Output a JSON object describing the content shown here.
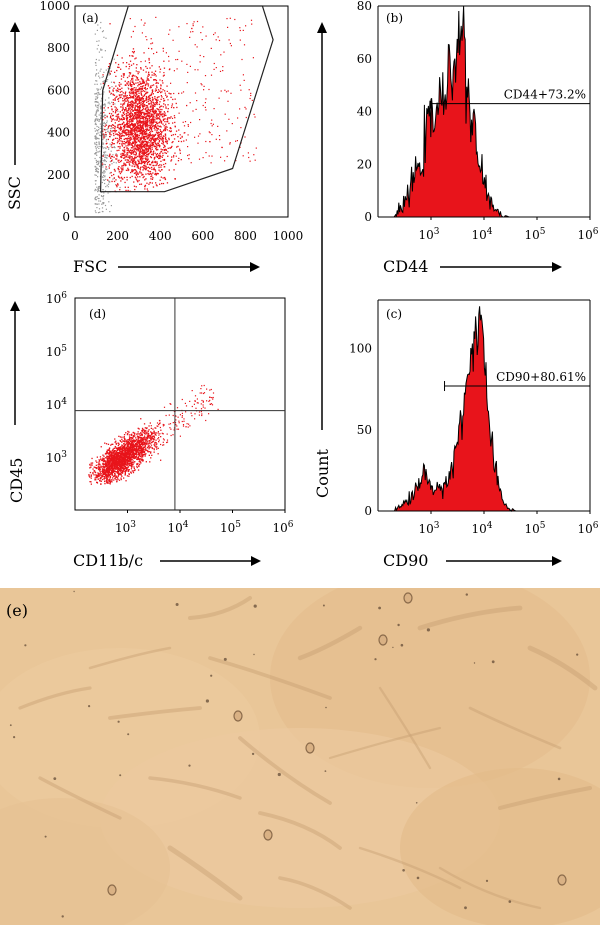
{
  "chart_data": [
    {
      "panel": "(a)",
      "type": "scatter",
      "xlabel": "FSC",
      "ylabel": "SSC",
      "xlim": [
        0,
        1000
      ],
      "ylim": [
        0,
        1000
      ],
      "xticks": [
        "0",
        "200",
        "400",
        "600",
        "800",
        "1000"
      ],
      "yticks": [
        "0",
        "200",
        "400",
        "600",
        "800",
        "1000"
      ],
      "gate_polygon": [
        [
          140,
          120
        ],
        [
          360,
          120
        ],
        [
          420,
          120
        ],
        [
          740,
          230
        ],
        [
          930,
          840
        ],
        [
          880,
          1020
        ],
        [
          250,
          1020
        ],
        [
          130,
          600
        ],
        [
          120,
          120
        ]
      ],
      "series": [
        {
          "color": "#e8141b",
          "cluster_center": [
            300,
            420
          ],
          "approx_points": 6000
        },
        {
          "color": "#999999",
          "cluster_center": [
            90,
            350
          ],
          "approx_points": 1500
        }
      ]
    },
    {
      "panel": "(b)",
      "type": "area",
      "xlabel": "CD44",
      "ylabel": "Count",
      "xscale": "log",
      "xlim": [
        100,
        1000000
      ],
      "ylim": [
        0,
        80
      ],
      "xticks": [
        "10^3",
        "10^4",
        "10^5",
        "10^6"
      ],
      "yticks": [
        "0",
        "20",
        "40",
        "60",
        "80"
      ],
      "x": [
        200,
        300,
        450,
        650,
        800,
        1000,
        1300,
        1600,
        2000,
        2400,
        2800,
        3200,
        3600,
        4200,
        5000,
        6000,
        7000,
        8500,
        10000,
        13000,
        17000,
        22000,
        30000
      ],
      "values": [
        0,
        4,
        13,
        22,
        30,
        37,
        41,
        43,
        48,
        55,
        62,
        68,
        76,
        62,
        45,
        35,
        27,
        20,
        12,
        6,
        3,
        1,
        0
      ],
      "gate": {
        "label": "CD44+73.2%",
        "x_start": 1000,
        "x_end": 1000000,
        "y": 43
      }
    },
    {
      "panel": "(d)",
      "type": "scatter",
      "xlabel": "CD11b/c",
      "ylabel": "CD45",
      "xscale": "log",
      "yscale": "log",
      "xlim": [
        100,
        1000000
      ],
      "ylim": [
        100,
        1000000
      ],
      "xticks": [
        "10^3",
        "10^4",
        "10^5",
        "10^6"
      ],
      "yticks": [
        "10^3",
        "10^4",
        "10^5",
        "10^6"
      ],
      "quadrant": {
        "x": 8000,
        "y": 7500
      },
      "series": [
        {
          "color": "#e8141b",
          "cluster_center": [
            800,
            1000
          ],
          "approx_points": 5000
        }
      ]
    },
    {
      "panel": "(c)",
      "type": "area",
      "xlabel": "CD90",
      "ylabel": "Count",
      "xscale": "log",
      "xlim": [
        100,
        1000000
      ],
      "ylim": [
        0,
        130
      ],
      "xticks": [
        "10^3",
        "10^4",
        "10^5",
        "10^6"
      ],
      "yticks": [
        "0",
        "50",
        "100"
      ],
      "x": [
        200,
        300,
        450,
        600,
        750,
        900,
        1100,
        1400,
        1800,
        2500,
        3500,
        5000,
        6500,
        8000,
        9000,
        10000,
        12000,
        15000,
        20000,
        28000,
        40000
      ],
      "values": [
        0,
        4,
        10,
        16,
        25,
        21,
        13,
        11,
        16,
        28,
        50,
        82,
        108,
        122,
        118,
        98,
        60,
        30,
        10,
        2,
        0
      ],
      "gate": {
        "label": "CD90+80.61%",
        "x_start": 1800,
        "x_end": 1000000,
        "y": 77
      }
    }
  ],
  "panel_e": {
    "label": "(e)",
    "background": "#e9c698"
  }
}
